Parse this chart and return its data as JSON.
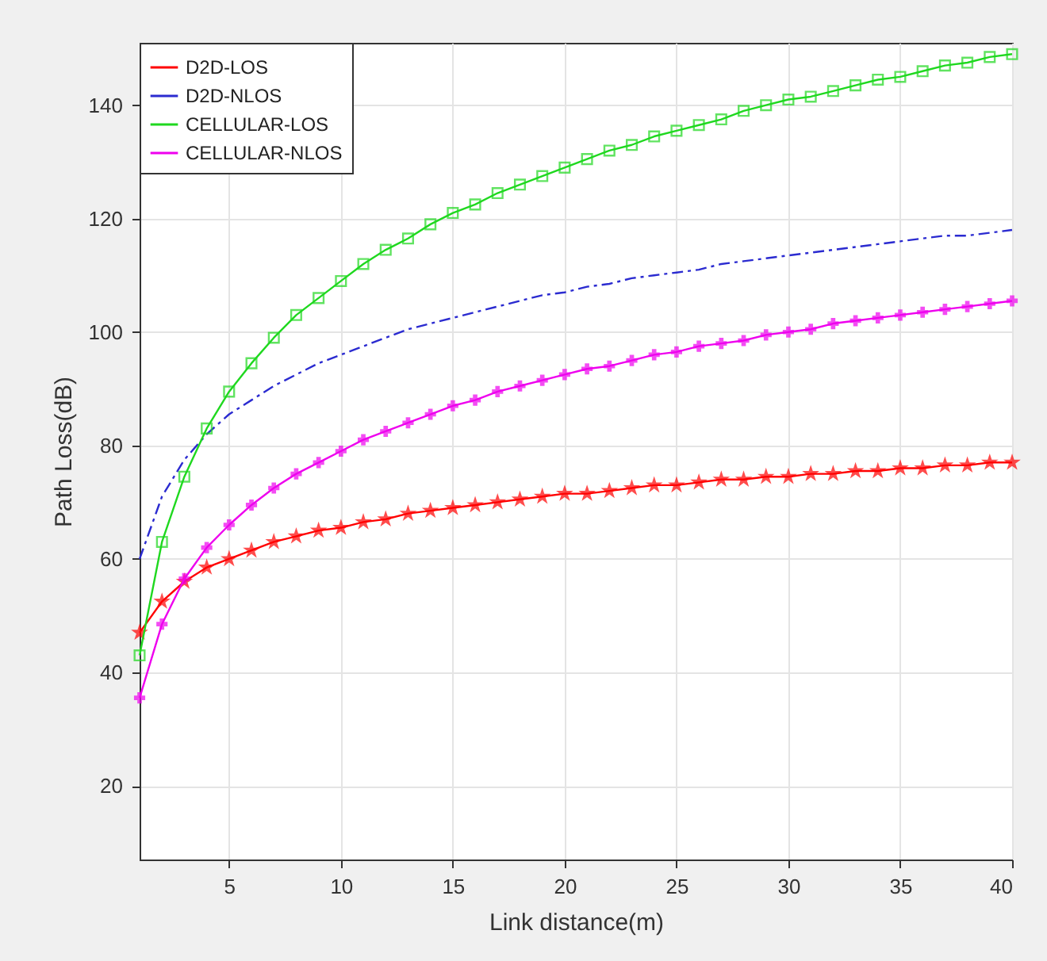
{
  "chart_data": {
    "type": "line",
    "xlabel": "Link distance(m)",
    "ylabel": "Path Loss(dB)",
    "x": [
      1,
      2,
      3,
      4,
      5,
      6,
      7,
      8,
      9,
      10,
      11,
      12,
      13,
      14,
      15,
      16,
      17,
      18,
      19,
      20,
      21,
      22,
      23,
      24,
      25,
      26,
      27,
      28,
      29,
      30,
      31,
      32,
      33,
      34,
      35,
      36,
      37,
      38,
      39,
      40
    ],
    "xlim": [
      1,
      40
    ],
    "xticks": [
      5,
      10,
      15,
      20,
      25,
      30,
      35,
      40
    ],
    "ylim": [
      7,
      151
    ],
    "yticks": [
      20,
      40,
      60,
      80,
      100,
      120,
      140
    ],
    "grid": true,
    "legend": "top left",
    "series": [
      {
        "name": "D2D-LOS",
        "color": "#ff0000",
        "marker": "star",
        "line_style": "solid",
        "values": [
          47,
          52.5,
          56,
          58.5,
          60,
          61.5,
          63,
          64,
          65,
          65.5,
          66.5,
          67,
          68,
          68.5,
          69,
          69.5,
          70,
          70.5,
          71,
          71.5,
          71.5,
          72,
          72.5,
          73,
          73,
          73.5,
          74,
          74,
          74.5,
          74.5,
          75,
          75,
          75.5,
          75.5,
          76,
          76,
          76.5,
          76.5,
          77,
          77
        ]
      },
      {
        "name": "D2D-NLOS",
        "color": "#2b2bd0",
        "marker": "none",
        "line_style": "dashed",
        "values": [
          60,
          71,
          77.5,
          82,
          85.5,
          88,
          90.5,
          92.5,
          94.5,
          96,
          97.5,
          99,
          100.5,
          101.5,
          102.5,
          103.5,
          104.5,
          105.5,
          106.5,
          107,
          108,
          108.5,
          109.5,
          110,
          110.5,
          111,
          112,
          112.5,
          113,
          113.5,
          114,
          114.5,
          115,
          115.5,
          116,
          116.5,
          117,
          117,
          117.5,
          118
        ]
      },
      {
        "name": "CELLULAR-LOS",
        "color": "#1fd81f",
        "marker": "square",
        "line_style": "solid",
        "values": [
          43,
          63,
          74.5,
          83,
          89.5,
          94.5,
          99,
          103,
          106,
          109,
          112,
          114.5,
          116.5,
          119,
          121,
          122.5,
          124.5,
          126,
          127.5,
          129,
          130.5,
          132,
          133,
          134.5,
          135.5,
          136.5,
          137.5,
          139,
          140,
          141,
          141.5,
          142.5,
          143.5,
          144.5,
          145,
          146,
          147,
          147.5,
          148.5,
          149
        ]
      },
      {
        "name": "CELLULAR-NLOS",
        "color": "#ee00ee",
        "marker": "cross",
        "line_style": "solid",
        "values": [
          35.5,
          48.5,
          56.5,
          62,
          66,
          69.5,
          72.5,
          75,
          77,
          79,
          81,
          82.5,
          84,
          85.5,
          87,
          88,
          89.5,
          90.5,
          91.5,
          92.5,
          93.5,
          94,
          95,
          96,
          96.5,
          97.5,
          98,
          98.5,
          99.5,
          100,
          100.5,
          101.5,
          102,
          102.5,
          103,
          103.5,
          104,
          104.5,
          105,
          105.5
        ]
      }
    ]
  }
}
